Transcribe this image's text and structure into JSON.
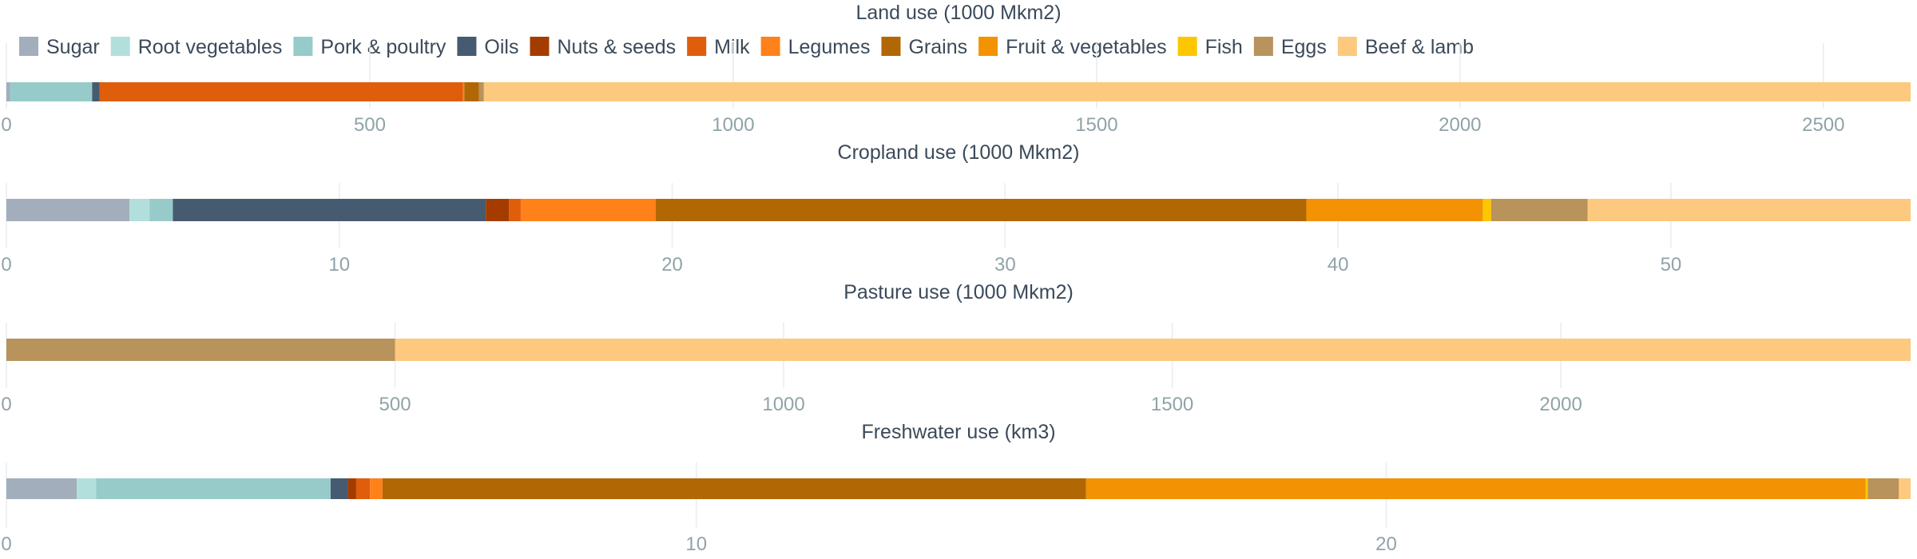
{
  "chart_data": {
    "type": "bar",
    "orientation": "horizontal-stacked",
    "legend": {
      "placement": "top-left",
      "items": [
        {
          "name": "Sugar",
          "color": "#a2aebb"
        },
        {
          "name": "Root vegetables",
          "color": "#b2dfdb"
        },
        {
          "name": "Pork & poultry",
          "color": "#96cbc9"
        },
        {
          "name": "Oils",
          "color": "#465b70"
        },
        {
          "name": "Nuts & seeds",
          "color": "#a43c00"
        },
        {
          "name": "Milk",
          "color": "#e05d0b"
        },
        {
          "name": "Legumes",
          "color": "#ff8119"
        },
        {
          "name": "Grains",
          "color": "#b26705"
        },
        {
          "name": "Fruit & vegetables",
          "color": "#f39203"
        },
        {
          "name": "Fish",
          "color": "#fdc700"
        },
        {
          "name": "Eggs",
          "color": "#b8935b"
        },
        {
          "name": "Beef & lamb",
          "color": "#fcc97e"
        }
      ]
    },
    "grid": true,
    "panels": [
      {
        "title": "Land use (1000 Mkm2)",
        "xlim": [
          0,
          2620
        ],
        "ticks": [
          0,
          500,
          1000,
          1500,
          2000,
          2500
        ],
        "segments": [
          {
            "name": "Sugar",
            "value": 5
          },
          {
            "name": "Pork & poultry",
            "value": 113
          },
          {
            "name": "Oils",
            "value": 10
          },
          {
            "name": "Milk",
            "value": 500
          },
          {
            "name": "Legumes",
            "value": 2
          },
          {
            "name": "Grains",
            "value": 20
          },
          {
            "name": "Eggs",
            "value": 7
          },
          {
            "name": "Beef & lamb",
            "value": 1963
          }
        ]
      },
      {
        "title": "Cropland use (1000 Mkm2)",
        "xlim": [
          0,
          57.2
        ],
        "ticks": [
          0,
          10,
          20,
          30,
          40,
          50
        ],
        "segments": [
          {
            "name": "Sugar",
            "value": 3.7
          },
          {
            "name": "Root vegetables",
            "value": 0.6
          },
          {
            "name": "Pork & poultry",
            "value": 0.7
          },
          {
            "name": "Oils",
            "value": 9.4
          },
          {
            "name": "Nuts & seeds",
            "value": 0.7
          },
          {
            "name": "Milk",
            "value": 0.35
          },
          {
            "name": "Legumes",
            "value": 4.05
          },
          {
            "name": "Grains",
            "value": 19.55
          },
          {
            "name": "Fruit & vegetables",
            "value": 5.3
          },
          {
            "name": "Fish",
            "value": 0.25
          },
          {
            "name": "Eggs",
            "value": 2.9
          },
          {
            "name": "Beef & lamb",
            "value": 9.7
          }
        ]
      },
      {
        "title": "Pasture use (1000 Mkm2)",
        "xlim": [
          0,
          2450
        ],
        "ticks": [
          0,
          500,
          1000,
          1500,
          2000
        ],
        "segments": [
          {
            "name": "Eggs",
            "value": 500
          },
          {
            "name": "Beef & lamb",
            "value": 1950
          }
        ]
      },
      {
        "title": "Freshwater use (km3)",
        "xlim": [
          0,
          27.6
        ],
        "ticks": [
          0,
          10,
          20
        ],
        "segments": [
          {
            "name": "Sugar",
            "value": 1.02
          },
          {
            "name": "Root vegetables",
            "value": 0.28
          },
          {
            "name": "Pork & poultry",
            "value": 3.4
          },
          {
            "name": "Oils",
            "value": 0.25
          },
          {
            "name": "Nuts & seeds",
            "value": 0.12
          },
          {
            "name": "Milk",
            "value": 0.2
          },
          {
            "name": "Legumes",
            "value": 0.18
          },
          {
            "name": "Grains",
            "value": 10.2
          },
          {
            "name": "Fruit & vegetables",
            "value": 11.3
          },
          {
            "name": "Fish",
            "value": 0.03
          },
          {
            "name": "Eggs",
            "value": 0.45
          },
          {
            "name": "Beef & lamb",
            "value": 0.17
          }
        ]
      }
    ]
  }
}
